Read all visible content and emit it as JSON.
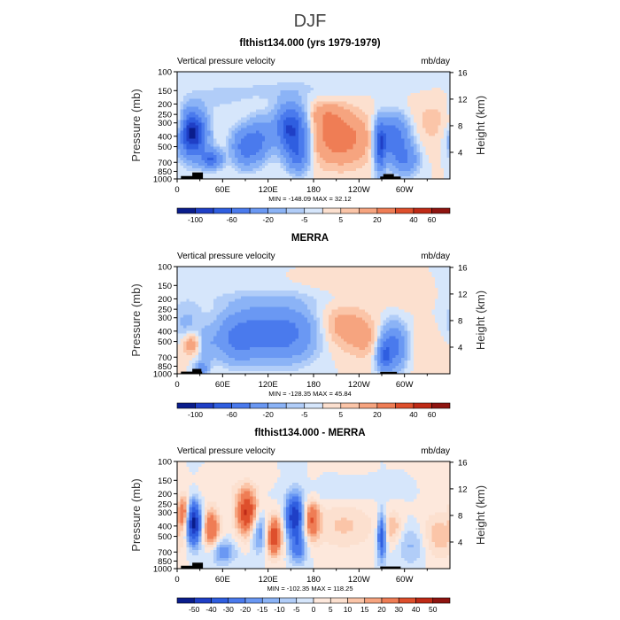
{
  "figure_title": "DJF",
  "colors": {
    "palette_abs": [
      "#0a1d8c",
      "#1f3fc6",
      "#2f5ee0",
      "#4a7aed",
      "#6a98f3",
      "#8bb3f6",
      "#b1cdf8",
      "#d6e6fb",
      "#fce0cf",
      "#fbc5a8",
      "#f6a47f",
      "#ef7d55",
      "#de4f2c",
      "#bf2a16",
      "#8f1410"
    ],
    "palette_diff": [
      "#0a1d8c",
      "#1f3fc6",
      "#2f5ee0",
      "#4a7aed",
      "#6a98f3",
      "#8bb3f6",
      "#b1cdf8",
      "#d6e6fb",
      "#fde8dc",
      "#fce0cf",
      "#fbc5a8",
      "#f6a47f",
      "#ef7d55",
      "#de4f2c",
      "#bf2a16",
      "#8f1410"
    ]
  },
  "chart_data": [
    {
      "type": "heatmap",
      "title": "flthist134.000 (yrs 1979-1979)",
      "subtitle_left": "Vertical pressure velocity",
      "subtitle_right": "mb/day",
      "ylabel": "Pressure (mb)",
      "ylabel_right": "Height (km)",
      "x_ticks": [
        "0",
        "60E",
        "120E",
        "180",
        "120W",
        "60W"
      ],
      "x_tick_lon": [
        0,
        60,
        120,
        180,
        240,
        300
      ],
      "xlim": [
        0,
        360
      ],
      "y_ticks": [
        "100",
        "150",
        "200",
        "250",
        "300",
        "400",
        "500",
        "700",
        "850",
        "1000"
      ],
      "y_tick_p": [
        100,
        150,
        200,
        250,
        300,
        400,
        500,
        700,
        850,
        1000
      ],
      "ylim": [
        1000,
        100
      ],
      "y_scale": "log",
      "right_ticks": [
        "16",
        "12",
        "8",
        "4"
      ],
      "right_tick_km": [
        16,
        12,
        8,
        4
      ],
      "stats": "MIN = -148.09   MAX =  32.12",
      "min": -148.09,
      "max": 32.12,
      "colorbar_labels": [
        "-100",
        "-60",
        "-20",
        "-5",
        "5",
        "20",
        "40",
        "60"
      ],
      "colorbar_levels": [
        -120,
        -100,
        -80,
        -60,
        -40,
        -20,
        -10,
        -5,
        0,
        5,
        10,
        20,
        30,
        40,
        50,
        60
      ],
      "palette": "abs",
      "features": [
        {
          "lon": 20,
          "p": 380,
          "slon": 12,
          "slogp": 0.32,
          "amp": -110
        },
        {
          "lon": 45,
          "p": 650,
          "slon": 9,
          "slogp": 0.14,
          "amp": -60
        },
        {
          "lon": 90,
          "p": 500,
          "slon": 12,
          "slogp": 0.28,
          "amp": -50
        },
        {
          "lon": 110,
          "p": 420,
          "slon": 10,
          "slogp": 0.3,
          "amp": -35
        },
        {
          "lon": 150,
          "p": 340,
          "slon": 14,
          "slogp": 0.34,
          "amp": -85
        },
        {
          "lon": 160,
          "p": 600,
          "slon": 10,
          "slogp": 0.25,
          "amp": -45
        },
        {
          "lon": 215,
          "p": 420,
          "slon": 30,
          "slogp": 0.4,
          "amp": 26
        },
        {
          "lon": 195,
          "p": 250,
          "slon": 18,
          "slogp": 0.2,
          "amp": 12
        },
        {
          "lon": 285,
          "p": 400,
          "slon": 14,
          "slogp": 0.3,
          "amp": -55
        },
        {
          "lon": 268,
          "p": 500,
          "slon": 5,
          "slogp": 0.35,
          "amp": -70
        },
        {
          "lon": 300,
          "p": 650,
          "slon": 12,
          "slogp": 0.22,
          "amp": -40
        },
        {
          "lon": 340,
          "p": 300,
          "slon": 25,
          "slogp": 0.4,
          "amp": 7
        },
        {
          "lon": 3,
          "p": 320,
          "slon": 5,
          "slogp": 0.18,
          "amp": 18
        },
        {
          "lon": 50,
          "p": 180,
          "slon": 30,
          "slogp": 0.2,
          "amp": -6
        },
        {
          "lon": 250,
          "p": 130,
          "slon": 60,
          "slogp": 0.15,
          "amp": -4
        },
        {
          "lon": 130,
          "p": 150,
          "slon": 50,
          "slogp": 0.15,
          "amp": -6
        }
      ],
      "topo": [
        {
          "lon0": 5,
          "lon1": 33,
          "p": 940
        },
        {
          "lon0": 20,
          "lon1": 34,
          "p": 870
        },
        {
          "lon0": 268,
          "lon1": 295,
          "p": 950
        },
        {
          "lon0": 272,
          "lon1": 286,
          "p": 900
        }
      ]
    },
    {
      "type": "heatmap",
      "title": "MERRA",
      "subtitle_left": "Vertical pressure velocity",
      "subtitle_right": "mb/day",
      "ylabel": "Pressure (mb)",
      "ylabel_right": "Height (km)",
      "x_ticks": [
        "0",
        "60E",
        "120E",
        "180",
        "120W",
        "60W"
      ],
      "x_tick_lon": [
        0,
        60,
        120,
        180,
        240,
        300
      ],
      "xlim": [
        0,
        360
      ],
      "y_ticks": [
        "100",
        "150",
        "200",
        "250",
        "300",
        "400",
        "500",
        "700",
        "850",
        "1000"
      ],
      "y_tick_p": [
        100,
        150,
        200,
        250,
        300,
        400,
        500,
        700,
        850,
        1000
      ],
      "ylim": [
        1000,
        100
      ],
      "y_scale": "log",
      "right_ticks": [
        "16",
        "12",
        "8",
        "4"
      ],
      "right_tick_km": [
        16,
        12,
        8,
        4
      ],
      "stats": "MIN = -128.35   MAX =  45.84",
      "min": -128.35,
      "max": 45.84,
      "colorbar_labels": [
        "-100",
        "-60",
        "-20",
        "-5",
        "5",
        "20",
        "40",
        "60"
      ],
      "colorbar_levels": [
        -120,
        -100,
        -80,
        -60,
        -40,
        -20,
        -10,
        -5,
        0,
        5,
        10,
        20,
        30,
        40,
        50,
        60
      ],
      "palette": "abs",
      "features": [
        {
          "lon": 20,
          "p": 520,
          "slon": 9,
          "slogp": 0.18,
          "amp": 22
        },
        {
          "lon": 12,
          "p": 350,
          "slon": 14,
          "slogp": 0.35,
          "amp": -12
        },
        {
          "lon": 38,
          "p": 560,
          "slon": 10,
          "slogp": 0.25,
          "amp": -14
        },
        {
          "lon": 32,
          "p": 900,
          "slon": 6,
          "slogp": 0.1,
          "amp": -30
        },
        {
          "lon": 100,
          "p": 420,
          "slon": 30,
          "slogp": 0.38,
          "amp": -45
        },
        {
          "lon": 150,
          "p": 420,
          "slon": 25,
          "slogp": 0.38,
          "amp": -38
        },
        {
          "lon": 75,
          "p": 500,
          "slon": 15,
          "slogp": 0.3,
          "amp": -18
        },
        {
          "lon": 220,
          "p": 360,
          "slon": 25,
          "slogp": 0.32,
          "amp": 14
        },
        {
          "lon": 250,
          "p": 500,
          "slon": 18,
          "slogp": 0.28,
          "amp": 9
        },
        {
          "lon": 285,
          "p": 560,
          "slon": 12,
          "slogp": 0.32,
          "amp": -52
        },
        {
          "lon": 273,
          "p": 700,
          "slon": 6,
          "slogp": 0.2,
          "amp": -45
        },
        {
          "lon": 330,
          "p": 600,
          "slon": 25,
          "slogp": 0.35,
          "amp": 5
        },
        {
          "lon": 305,
          "p": 200,
          "slon": 20,
          "slogp": 0.15,
          "amp": 4
        },
        {
          "lon": 120,
          "p": 200,
          "slon": 60,
          "slogp": 0.15,
          "amp": -6
        },
        {
          "lon": 200,
          "p": 150,
          "slon": 40,
          "slogp": 0.15,
          "amp": 2
        }
      ],
      "topo": [
        {
          "lon0": 5,
          "lon1": 33,
          "p": 955
        },
        {
          "lon0": 20,
          "lon1": 32,
          "p": 900
        },
        {
          "lon0": 268,
          "lon1": 290,
          "p": 960
        }
      ]
    },
    {
      "type": "heatmap",
      "title": "flthist134.000 - MERRA",
      "subtitle_left": "Vertical pressure velocity",
      "subtitle_right": "mb/day",
      "ylabel": "Pressure (mb)",
      "ylabel_right": "Height (km)",
      "x_ticks": [
        "0",
        "60E",
        "120E",
        "180",
        "120W",
        "60W"
      ],
      "x_tick_lon": [
        0,
        60,
        120,
        180,
        240,
        300
      ],
      "xlim": [
        0,
        360
      ],
      "y_ticks": [
        "100",
        "150",
        "200",
        "250",
        "300",
        "400",
        "500",
        "700",
        "850",
        "1000"
      ],
      "y_tick_p": [
        100,
        150,
        200,
        250,
        300,
        400,
        500,
        700,
        850,
        1000
      ],
      "ylim": [
        1000,
        100
      ],
      "y_scale": "log",
      "right_ticks": [
        "16",
        "12",
        "8",
        "4"
      ],
      "right_tick_km": [
        16,
        12,
        8,
        4
      ],
      "stats": "MIN = -102.35   MAX =  118.25",
      "min": -102.35,
      "max": 118.25,
      "colorbar_labels": [
        "-50",
        "-40",
        "-30",
        "-20",
        "-15",
        "-10",
        "-5",
        "0",
        "5",
        "10",
        "15",
        "20",
        "30",
        "40",
        "50"
      ],
      "colorbar_levels": [
        -60,
        -50,
        -40,
        -30,
        -20,
        -15,
        -10,
        -5,
        0,
        5,
        10,
        15,
        20,
        30,
        40,
        50
      ],
      "palette": "diff",
      "features": [
        {
          "lon": 22,
          "p": 380,
          "slon": 7,
          "slogp": 0.32,
          "amp": -55
        },
        {
          "lon": 8,
          "p": 300,
          "slon": 5,
          "slogp": 0.25,
          "amp": 30
        },
        {
          "lon": 45,
          "p": 420,
          "slon": 8,
          "slogp": 0.3,
          "amp": 30
        },
        {
          "lon": 60,
          "p": 700,
          "slon": 12,
          "slogp": 0.18,
          "amp": -20
        },
        {
          "lon": 92,
          "p": 300,
          "slon": 10,
          "slogp": 0.35,
          "amp": 42
        },
        {
          "lon": 108,
          "p": 450,
          "slon": 8,
          "slogp": 0.3,
          "amp": -22
        },
        {
          "lon": 128,
          "p": 500,
          "slon": 7,
          "slogp": 0.3,
          "amp": 38
        },
        {
          "lon": 155,
          "p": 330,
          "slon": 8,
          "slogp": 0.32,
          "amp": -50
        },
        {
          "lon": 160,
          "p": 650,
          "slon": 8,
          "slogp": 0.22,
          "amp": -25
        },
        {
          "lon": 178,
          "p": 350,
          "slon": 7,
          "slogp": 0.3,
          "amp": 28
        },
        {
          "lon": 220,
          "p": 400,
          "slon": 30,
          "slogp": 0.35,
          "amp": 11
        },
        {
          "lon": 270,
          "p": 500,
          "slon": 4,
          "slogp": 0.35,
          "amp": -40
        },
        {
          "lon": 285,
          "p": 420,
          "slon": 9,
          "slogp": 0.25,
          "amp": 14
        },
        {
          "lon": 310,
          "p": 600,
          "slon": 15,
          "slogp": 0.3,
          "amp": -12
        },
        {
          "lon": 345,
          "p": 500,
          "slon": 18,
          "slogp": 0.35,
          "amp": 14
        },
        {
          "lon": 200,
          "p": 200,
          "slon": 50,
          "slogp": 0.15,
          "amp": -4
        },
        {
          "lon": 60,
          "p": 180,
          "slon": 40,
          "slogp": 0.15,
          "amp": 3
        }
      ],
      "topo": [
        {
          "lon0": 5,
          "lon1": 33,
          "p": 940
        },
        {
          "lon0": 20,
          "lon1": 34,
          "p": 880
        },
        {
          "lon0": 268,
          "lon1": 295,
          "p": 955
        }
      ]
    }
  ]
}
